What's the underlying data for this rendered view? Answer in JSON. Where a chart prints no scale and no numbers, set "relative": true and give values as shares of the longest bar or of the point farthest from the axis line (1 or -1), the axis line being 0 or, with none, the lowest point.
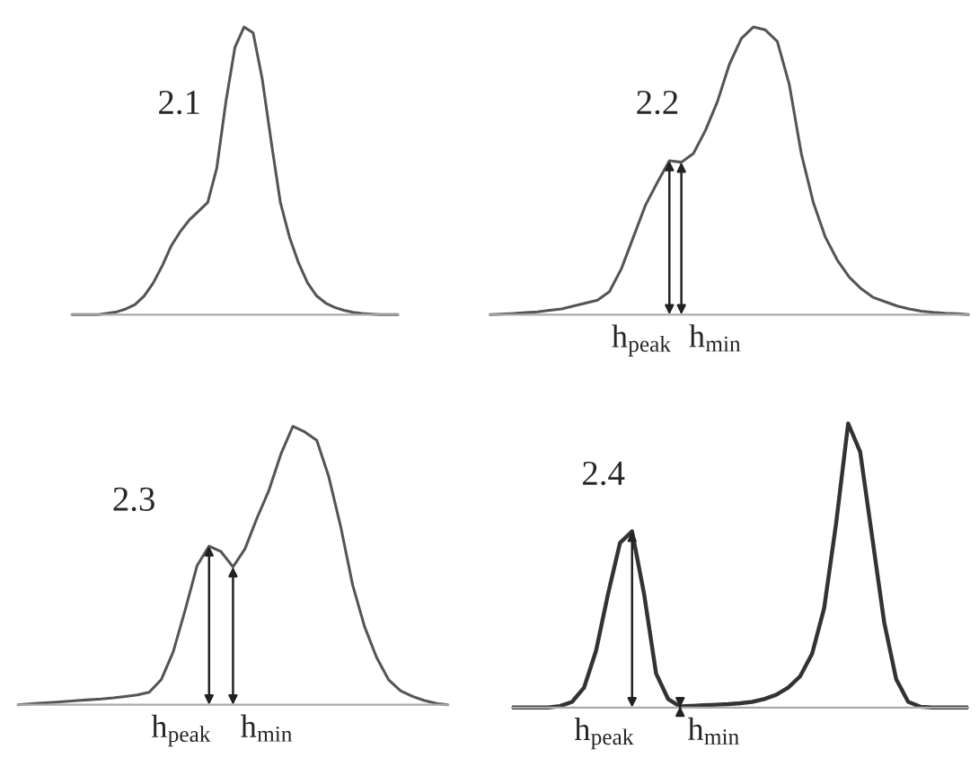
{
  "chart_data": [
    {
      "type": "line",
      "relative": true,
      "categories": [
        null,
        null,
        null,
        null,
        null,
        null,
        null,
        null,
        null,
        null,
        null,
        null,
        null,
        null,
        null,
        null,
        null,
        null,
        null,
        null,
        null,
        null,
        null,
        null,
        null,
        null,
        null,
        null,
        null,
        null,
        null,
        null,
        null,
        null,
        null,
        null,
        null
      ],
      "series": [
        {
          "color": "#555555",
          "values": [
            0,
            0,
            0,
            0,
            0.005,
            0.01,
            0.02,
            0.035,
            0.065,
            0.11,
            0.17,
            0.24,
            0.29,
            0.33,
            0.36,
            0.39,
            0.51,
            0.74,
            0.93,
            1.0,
            0.98,
            0.82,
            0.6,
            0.39,
            0.27,
            0.18,
            0.11,
            0.065,
            0.04,
            0.025,
            0.015,
            0.008,
            0.004,
            0.002,
            0,
            0,
            0
          ]
        }
      ],
      "annotations": [
        "2.1"
      ]
    },
    {
      "type": "line",
      "relative": true,
      "categories": [
        null,
        null,
        null,
        null,
        null,
        null,
        null,
        null,
        null,
        null,
        null,
        null,
        null,
        null,
        null,
        null,
        null,
        null,
        null,
        null,
        null,
        null,
        null,
        null,
        null,
        null,
        null,
        null,
        null,
        null,
        null,
        null,
        null,
        null,
        null,
        null,
        null,
        null,
        null,
        null,
        null
      ],
      "series": [
        {
          "color": "#555555",
          "values": [
            0,
            0.002,
            0.004,
            0.007,
            0.01,
            0.015,
            0.02,
            0.03,
            0.04,
            0.05,
            0.08,
            0.16,
            0.27,
            0.38,
            0.46,
            0.535,
            0.53,
            0.56,
            0.64,
            0.74,
            0.87,
            0.96,
            1.0,
            0.99,
            0.95,
            0.8,
            0.56,
            0.39,
            0.27,
            0.19,
            0.13,
            0.09,
            0.06,
            0.045,
            0.03,
            0.02,
            0.012,
            0.008,
            0.005,
            0.003,
            0
          ]
        }
      ],
      "annotations": [
        "2.2",
        "h$_{peak}$",
        "h$_{min}$"
      ]
    },
    {
      "type": "line",
      "relative": true,
      "categories": [
        null,
        null,
        null,
        null,
        null,
        null,
        null,
        null,
        null,
        null,
        null,
        null,
        null,
        null,
        null,
        null,
        null,
        null,
        null,
        null,
        null,
        null,
        null,
        null,
        null,
        null,
        null,
        null,
        null,
        null,
        null,
        null,
        null,
        null,
        null,
        null,
        null
      ],
      "series": [
        {
          "color": "#555555",
          "values": [
            0,
            0.003,
            0.006,
            0.009,
            0.012,
            0.015,
            0.018,
            0.021,
            0.025,
            0.03,
            0.035,
            0.045,
            0.09,
            0.19,
            0.34,
            0.5,
            0.57,
            0.55,
            0.495,
            0.56,
            0.67,
            0.77,
            0.9,
            1.0,
            0.98,
            0.95,
            0.82,
            0.64,
            0.43,
            0.28,
            0.17,
            0.09,
            0.05,
            0.03,
            0.015,
            0.005,
            0
          ]
        }
      ],
      "annotations": [
        "2.3",
        "h$_{peak}$",
        "h$_{min}$"
      ]
    },
    {
      "type": "line",
      "relative": true,
      "categories": [
        null,
        null,
        null,
        null,
        null,
        null,
        null,
        null,
        null,
        null,
        null,
        null,
        null,
        null,
        null,
        null,
        null,
        null,
        null,
        null,
        null,
        null,
        null,
        null,
        null,
        null,
        null,
        null,
        null,
        null,
        null,
        null,
        null,
        null,
        null,
        null,
        null,
        null,
        null
      ],
      "series": [
        {
          "color": "#333333",
          "values": [
            0,
            0,
            0,
            0,
            0.005,
            0.02,
            0.07,
            0.2,
            0.4,
            0.58,
            0.62,
            0.4,
            0.12,
            0.03,
            0.004,
            0.006,
            0.008,
            0.01,
            0.012,
            0.015,
            0.02,
            0.03,
            0.045,
            0.07,
            0.11,
            0.19,
            0.35,
            0.65,
            1.0,
            0.9,
            0.6,
            0.3,
            0.1,
            0.02,
            0.003,
            0,
            0,
            0,
            0
          ]
        }
      ],
      "annotations": [
        "2.4",
        "h$_{peak}$",
        "h$_{min}$"
      ]
    }
  ]
}
